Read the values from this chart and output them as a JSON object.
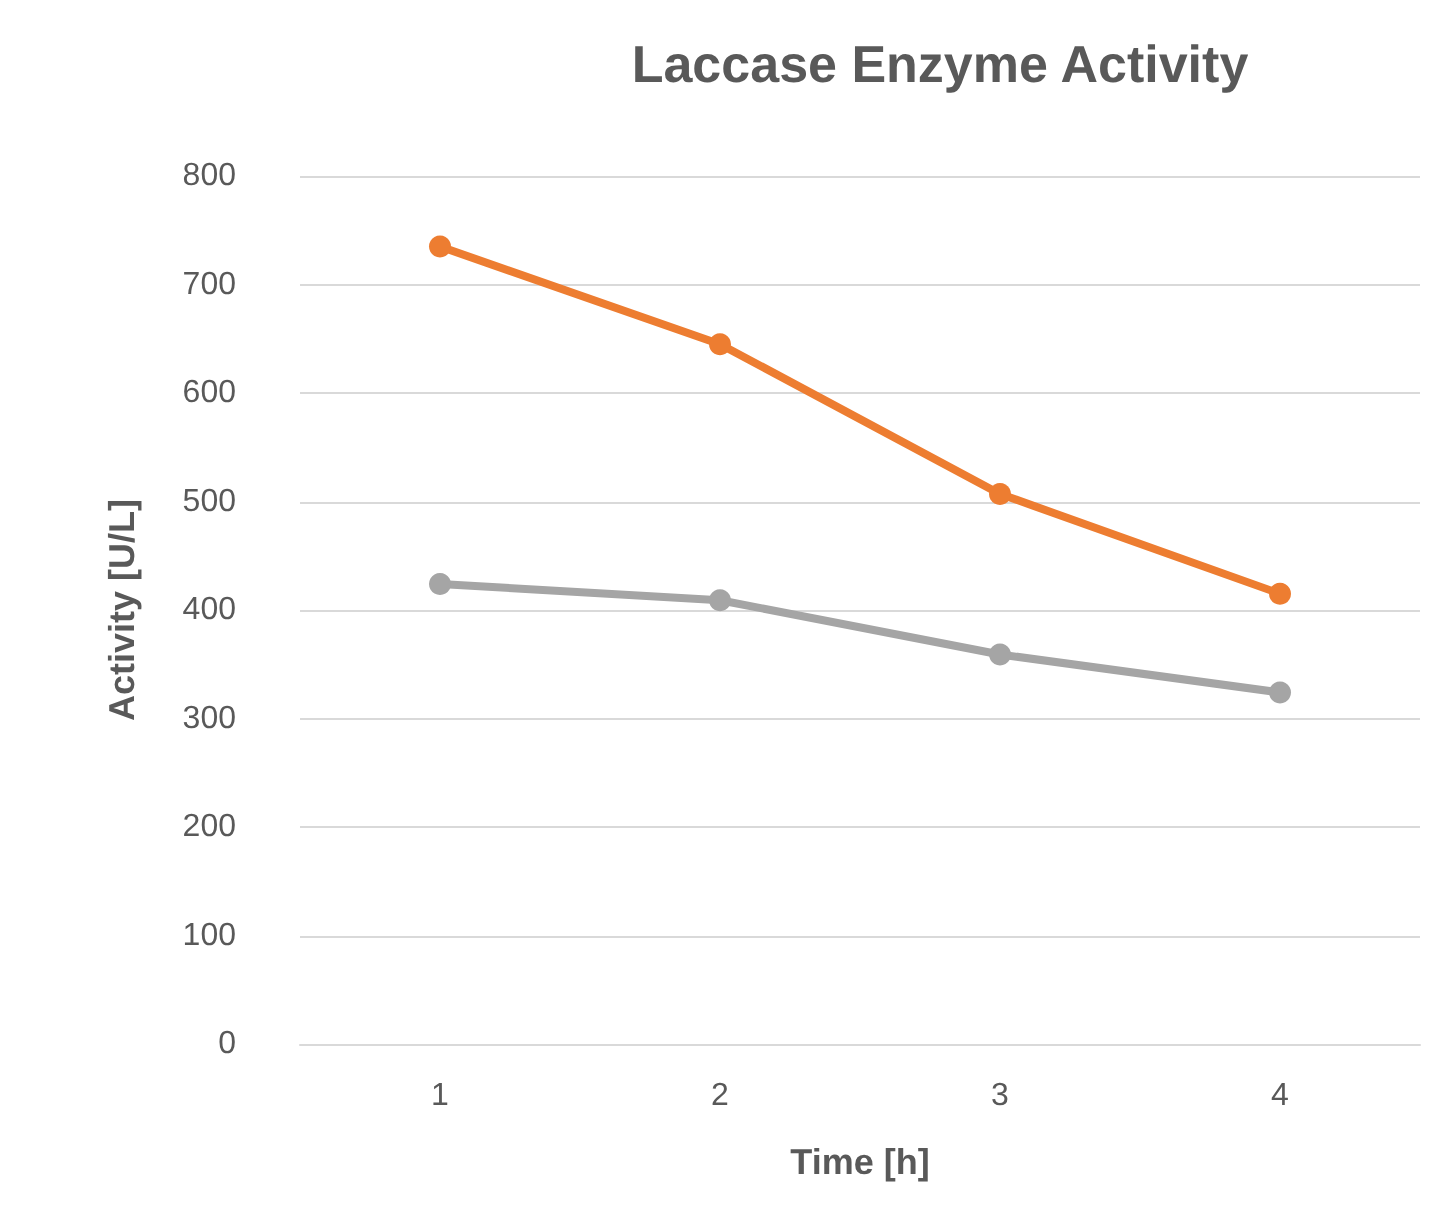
{
  "chart_data": {
    "type": "line",
    "title": "Laccase Enzyme Activity",
    "xlabel": "Time [h]",
    "ylabel": "Activity [U/L]",
    "categories": [
      "1",
      "2",
      "3",
      "4"
    ],
    "series": [
      {
        "color": "#ed7d31",
        "values": [
          735,
          645,
          507,
          415
        ]
      },
      {
        "color": "#a5a5a5",
        "values": [
          424,
          409,
          359,
          324
        ]
      }
    ],
    "ylim": [
      0,
      800
    ],
    "yticks": [
      0,
      100,
      200,
      300,
      400,
      500,
      600,
      700,
      800
    ],
    "grid": "y",
    "marker": "circle",
    "line_style": "solid"
  }
}
